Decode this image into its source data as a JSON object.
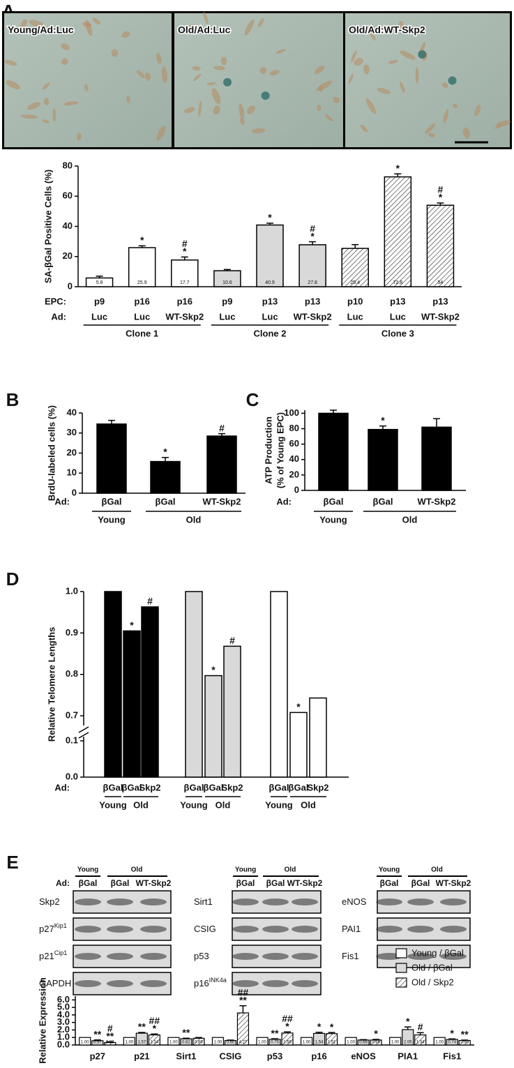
{
  "panel_labels": [
    "A",
    "B",
    "C",
    "D",
    "E"
  ],
  "micrographs": [
    "Young/Ad:Luc",
    "Old/Ad:Luc",
    "Old/Ad:WT-Skp2"
  ],
  "blots": [
    {
      "header": [
        "Young",
        "Old"
      ],
      "ad_label": "Ad:",
      "lanes": [
        "βGal",
        "βGal",
        "WT-Skp2"
      ],
      "rows": [
        {
          "name": "Skp2"
        },
        {
          "name": "p27",
          "sup": "Kip1"
        },
        {
          "name": "p21",
          "sup": "Cip1"
        },
        {
          "name": "GAPDH"
        }
      ]
    },
    {
      "header": [
        "Young",
        "Old"
      ],
      "lanes": [
        "βGal",
        "βGal",
        "WT-Skp2"
      ],
      "rows": [
        {
          "name": "Sirt1"
        },
        {
          "name": "CSIG"
        },
        {
          "name": "p53"
        },
        {
          "name": "p16",
          "sup": "INK4a"
        }
      ]
    },
    {
      "header": [
        "Young",
        "Old"
      ],
      "lanes": [
        "βGal",
        "βGal",
        "WT-Skp2"
      ],
      "rows": [
        {
          "name": "eNOS"
        },
        {
          "name": "PAI1"
        },
        {
          "name": "Fis1"
        }
      ]
    }
  ],
  "chart_data": [
    {
      "type": "bar",
      "ylabel": "SA-βGal Positive Cells (%)",
      "ylim": [
        0,
        80
      ],
      "yticks": [
        0,
        20,
        40,
        60,
        80
      ],
      "row_labels": [
        "EPC:",
        "Ad:"
      ],
      "categories": [
        "p9",
        "p16",
        "p16",
        "p9",
        "p13",
        "p13",
        "p10",
        "p13",
        "p13"
      ],
      "ad": [
        "Luc",
        "Luc",
        "WT-Skp2",
        "Luc",
        "Luc",
        "WT-Skp2",
        "Luc",
        "Luc",
        "WT-Skp2"
      ],
      "groups": [
        {
          "label": "Clone 1",
          "span": 3
        },
        {
          "label": "Clone 2",
          "span": 3
        },
        {
          "label": "Clone 3",
          "span": 3
        }
      ],
      "values": [
        5.8,
        25.9,
        17.7,
        10.6,
        40.9,
        27.8,
        25.4,
        72.8,
        54
      ],
      "errors": [
        1.2,
        1.2,
        2,
        0.8,
        1.2,
        2,
        2.5,
        2,
        1.5
      ],
      "show_values": true,
      "fills": [
        "#ffffff",
        "#ffffff",
        "#ffffff",
        "#d9d9d9",
        "#d9d9d9",
        "#d9d9d9",
        "hatch",
        "hatch",
        "hatch"
      ],
      "marks": [
        [],
        [
          "*"
        ],
        [
          "#",
          "*"
        ],
        [],
        [
          "*"
        ],
        [
          "#",
          "*"
        ],
        [],
        [
          "*"
        ],
        [
          "#",
          "*"
        ]
      ]
    },
    {
      "type": "bar",
      "ylabel": "BrdU-labeled cells (%)",
      "ylim": [
        0,
        40
      ],
      "yticks": [
        0,
        10,
        20,
        30,
        40
      ],
      "row_labels": [
        "Ad:"
      ],
      "categories": [
        "βGal",
        "βGal",
        "WT-Skp2"
      ],
      "groups": [
        {
          "label": "Young",
          "span": 1
        },
        {
          "label": "Old",
          "span": 2
        }
      ],
      "values": [
        34.5,
        15.8,
        28.5
      ],
      "errors": [
        1.8,
        2,
        1.2
      ],
      "fills": [
        "#000000",
        "#000000",
        "#000000"
      ],
      "marks": [
        [],
        [
          "*"
        ],
        [
          "#"
        ]
      ]
    },
    {
      "type": "bar",
      "ylabel": [
        "ATP Production",
        "(% of Young EPC)"
      ],
      "ylim": [
        0,
        104
      ],
      "yticks": [
        0,
        20,
        40,
        60,
        80,
        100
      ],
      "row_labels": [
        "Ad:"
      ],
      "categories": [
        "βGal",
        "βGal",
        "WT-Skp2"
      ],
      "groups": [
        {
          "label": "Young",
          "span": 1
        },
        {
          "label": "Old",
          "span": 2
        }
      ],
      "values": [
        100,
        79,
        82
      ],
      "errors": [
        4,
        4.5,
        11
      ],
      "fills": [
        "#000000",
        "#000000",
        "#000000"
      ],
      "marks": [
        [],
        [
          "*"
        ],
        []
      ]
    },
    {
      "type": "bar",
      "ylabel": "Relative Telomere Lengths",
      "ylim": [
        0,
        1
      ],
      "ybreak": [
        0.1,
        0.68
      ],
      "yticks": [
        {
          "value": 0,
          "label": "0.0"
        },
        0.1,
        0.7,
        0.8,
        0.9,
        {
          "value": 1,
          "label": "1.0"
        }
      ],
      "row_labels": [
        "Ad:"
      ],
      "categories": [
        "βGal",
        "βGal",
        "Skp2",
        "βGal",
        "βGal",
        "Skp2",
        "βGal",
        "βGal",
        "Skp2"
      ],
      "groups": [
        {
          "label": "Young",
          "span": 1
        },
        {
          "label": "Old",
          "span": 2
        },
        {
          "label": "Young",
          "span": 1
        },
        {
          "label": "Old",
          "span": 2
        },
        {
          "label": "Young",
          "span": 1
        },
        {
          "label": "Old",
          "span": 2
        }
      ],
      "values": [
        1,
        0.905,
        0.963,
        1,
        0.797,
        0.868,
        1,
        0.708,
        0.743
      ],
      "fills": [
        "#000000",
        "#000000",
        "#000000",
        "#d9d9d9",
        "#d9d9d9",
        "#d9d9d9",
        "#ffffff",
        "#ffffff",
        "#ffffff"
      ],
      "marks": [
        [],
        [
          "*"
        ],
        [
          "#"
        ],
        [],
        [
          "*"
        ],
        [
          "#"
        ],
        [],
        [
          "*"
        ],
        []
      ]
    },
    {
      "type": "grouped_bar",
      "ylabel": "Relative Expression",
      "ylim": [
        0,
        6.5
      ],
      "yticks": [
        {
          "value": 0,
          "label": "0.0"
        },
        {
          "value": 1,
          "label": "1.0"
        },
        {
          "value": 2,
          "label": "2.0"
        },
        {
          "value": 3,
          "label": "3.0"
        },
        {
          "value": 4,
          "label": "4.0"
        },
        {
          "value": 5,
          "label": "5.0"
        },
        {
          "value": 6,
          "label": "6.0"
        }
      ],
      "categories": [
        "p27",
        "p21",
        "Sirt1",
        "CSIG",
        "p53",
        "p16",
        "eNOS",
        "PIA1",
        "Fis1"
      ],
      "legend": "upper right",
      "series": [
        {
          "name": "Young / βGal",
          "fill": "#ffffff",
          "values": [
            1,
            1,
            1,
            1,
            1,
            1,
            1,
            1,
            1
          ],
          "value_labels": [
            "1.00",
            "1.00",
            "1.00",
            "1.00",
            "1.00",
            "1.00",
            "1.00",
            "1.00",
            "1.00"
          ],
          "marks": [
            [],
            [],
            [],
            [],
            [],
            [],
            [],
            [],
            []
          ]
        },
        {
          "name": "Old / βGal",
          "fill": "#d9d9d9",
          "values": [
            0.57,
            1.57,
            0.82,
            0.6,
            0.75,
            1.54,
            0.66,
            2.05,
            0.74
          ],
          "value_labels": [
            "0.57",
            "1.57",
            "0.82",
            "0.60",
            "0.75",
            "1.54",
            "0.66",
            "2.05",
            "0.74"
          ],
          "errors": [
            0.1,
            0.1,
            0.08,
            0.05,
            0.08,
            0.15,
            0.05,
            0.35,
            0.07
          ],
          "marks": [
            [
              "**"
            ],
            [
              "**"
            ],
            [
              "**"
            ],
            [],
            [
              "**"
            ],
            [
              "*"
            ],
            [],
            [
              "*"
            ],
            [
              "*"
            ]
          ]
        },
        {
          "name": "Old / Skp2",
          "fill": "hatch",
          "values": [
            0.33,
            1.34,
            0.89,
            4.27,
            1.59,
            1.51,
            0.66,
            1.34,
            0.6
          ],
          "value_labels": [
            "0.33",
            "1.34",
            "0.89",
            "4.27",
            "1.59",
            "1.51",
            "0.66",
            "1.34",
            "0.60"
          ],
          "errors": [
            0.1,
            0.12,
            0.1,
            0.95,
            0.15,
            0.15,
            0.08,
            0.3,
            0.05
          ],
          "marks": [
            [
              "#",
              "**"
            ],
            [
              "##",
              "*"
            ],
            [],
            [
              "##",
              "**"
            ],
            [
              "##",
              "*"
            ],
            [
              "*"
            ],
            [
              "*"
            ],
            [
              "#"
            ],
            [
              "**"
            ]
          ]
        }
      ]
    }
  ]
}
